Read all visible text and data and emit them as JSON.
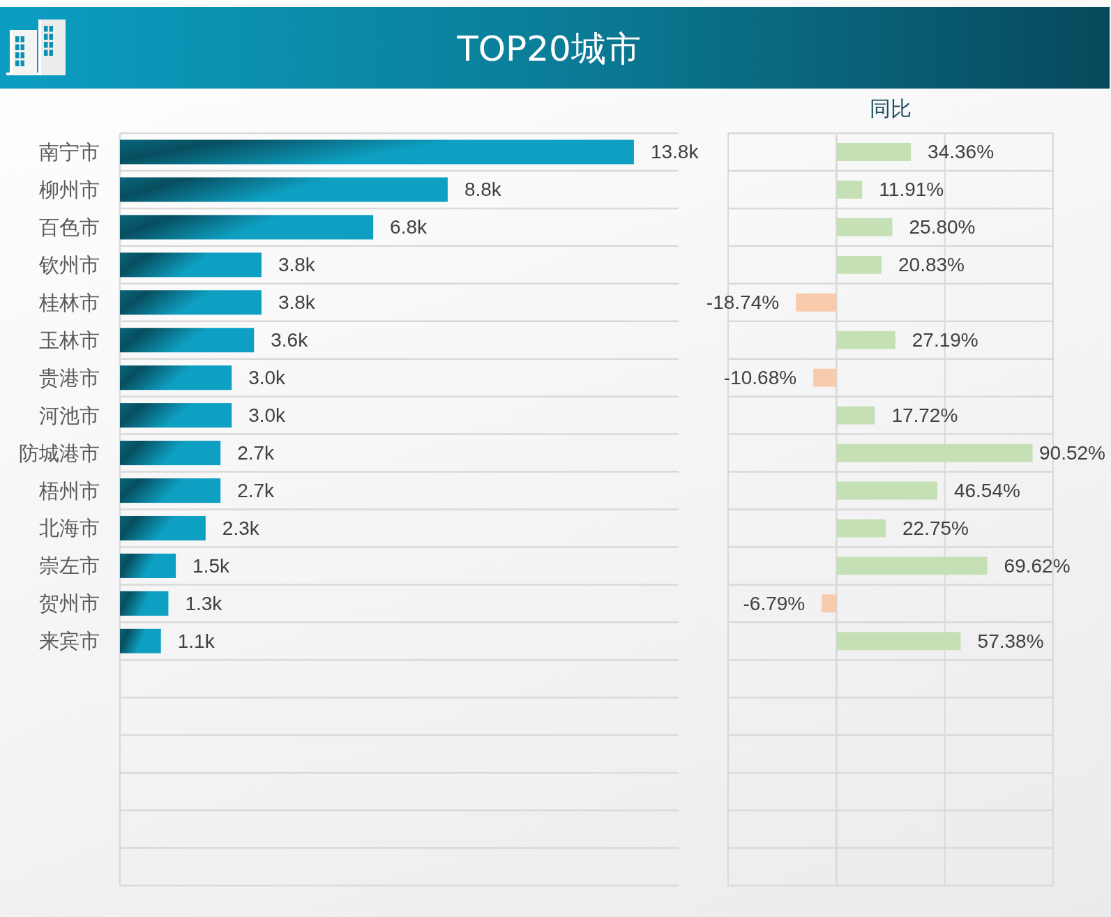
{
  "chart_data": [
    {
      "type": "bar",
      "title": "TOP20城市",
      "orientation": "horizontal",
      "categories": [
        "南宁市",
        "柳州市",
        "百色市",
        "钦州市",
        "桂林市",
        "玉林市",
        "贵港市",
        "河池市",
        "防城港市",
        "梧州市",
        "北海市",
        "崇左市",
        "贺州市",
        "来宾市",
        null,
        null,
        null,
        null,
        null,
        null
      ],
      "values": [
        13800,
        8800,
        6800,
        3800,
        3800,
        3600,
        3000,
        3000,
        2700,
        2700,
        2300,
        1500,
        1300,
        1100,
        null,
        null,
        null,
        null,
        null,
        null
      ],
      "color": "#0ea0c2",
      "value_labels": [
        "13.8k",
        "8.8k",
        "6.8k",
        "3.8k",
        "3.8k",
        "3.6k",
        "3.0k",
        "3.0k",
        "2.7k",
        "2.7k",
        "2.3k",
        "1.5k",
        "1.3k",
        "1.1k",
        null,
        null,
        null,
        null,
        null,
        null
      ],
      "xlim": [
        0,
        15000
      ],
      "tick_labels": "y",
      "grid": "y"
    },
    {
      "type": "bar",
      "title": "同比",
      "orientation": "horizontal",
      "categories": [
        null,
        null,
        null,
        null,
        null,
        null,
        null,
        null,
        null,
        null,
        null,
        null,
        null,
        null,
        null,
        null,
        null,
        null,
        null,
        null
      ],
      "values": [
        34.36,
        11.91,
        25.8,
        20.83,
        -18.74,
        27.19,
        -10.68,
        17.72,
        90.52,
        46.54,
        22.75,
        69.62,
        -6.79,
        57.38,
        null,
        null,
        null,
        null,
        null,
        null
      ],
      "colors": [
        "#c5e0b4",
        "#c5e0b4",
        "#c5e0b4",
        "#c5e0b4",
        "#f8cbad",
        "#c5e0b4",
        "#f8cbad",
        "#c5e0b4",
        "#c5e0b4",
        "#c5e0b4",
        "#c5e0b4",
        "#c5e0b4",
        "#f8cbad",
        "#c5e0b4",
        null,
        null,
        null,
        null,
        null,
        null
      ],
      "value_labels": [
        "34.36%",
        "11.91%",
        "25.80%",
        "20.83%",
        "-18.74%",
        "27.19%",
        "-10.68%",
        "17.72%",
        "90.52%",
        "46.54%",
        "22.75%",
        "69.62%",
        "-6.79%",
        "57.38%",
        null,
        null,
        null,
        null,
        null,
        null
      ],
      "xlim": [
        -50,
        100
      ],
      "xticks": [
        {
          "value": -50,
          "label": null
        },
        {
          "value": 0,
          "label": null
        },
        {
          "value": 100,
          "label": null
        }
      ],
      "tick_labels": false,
      "grid": true,
      "ref_lines": [
        {
          "axis": "x",
          "value": 50,
          "color": "#d9d9d9"
        }
      ]
    }
  ]
}
